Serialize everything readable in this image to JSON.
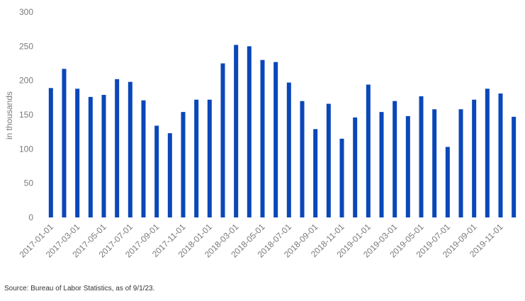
{
  "chart_data": {
    "type": "bar",
    "title": "",
    "xlabel": "",
    "ylabel": "in thousands",
    "ylim": [
      0,
      300
    ],
    "yticks": [
      0,
      50,
      100,
      150,
      200,
      250,
      300
    ],
    "grid": false,
    "legend": "none",
    "bar_color": "#0a47b9",
    "categories": [
      "2017-01-01",
      "2017-02-01",
      "2017-03-01",
      "2017-04-01",
      "2017-05-01",
      "2017-06-01",
      "2017-07-01",
      "2017-08-01",
      "2017-09-01",
      "2017-10-01",
      "2017-11-01",
      "2017-12-01",
      "2018-01-01",
      "2018-02-01",
      "2018-03-01",
      "2018-04-01",
      "2018-05-01",
      "2018-06-01",
      "2018-07-01",
      "2018-08-01",
      "2018-09-01",
      "2018-10-01",
      "2018-11-01",
      "2018-12-01",
      "2019-01-01",
      "2019-02-01",
      "2019-03-01",
      "2019-04-01",
      "2019-05-01",
      "2019-06-01",
      "2019-07-01",
      "2019-08-01",
      "2019-09-01",
      "2019-10-01",
      "2019-11-01",
      "2019-12-01"
    ],
    "tick_labels_shown": [
      "2017-01-01",
      "2017-03-01",
      "2017-05-01",
      "2017-07-01",
      "2017-09-01",
      "2017-11-01",
      "2018-01-01",
      "2018-03-01",
      "2018-05-01",
      "2018-07-01",
      "2018-09-01",
      "2018-11-01",
      "2019-01-01",
      "2019-03-01",
      "2019-05-01",
      "2019-07-01",
      "2019-09-01",
      "2019-11-01"
    ],
    "values": [
      189,
      217,
      188,
      176,
      179,
      202,
      198,
      171,
      134,
      123,
      154,
      172,
      172,
      225,
      252,
      250,
      230,
      227,
      197,
      170,
      129,
      166,
      115,
      146,
      194,
      154,
      170,
      148,
      177,
      158,
      103,
      158,
      172,
      188,
      181,
      147
    ]
  },
  "source_note": "Source: Bureau of Labor Statistics, as of 9/1/23."
}
